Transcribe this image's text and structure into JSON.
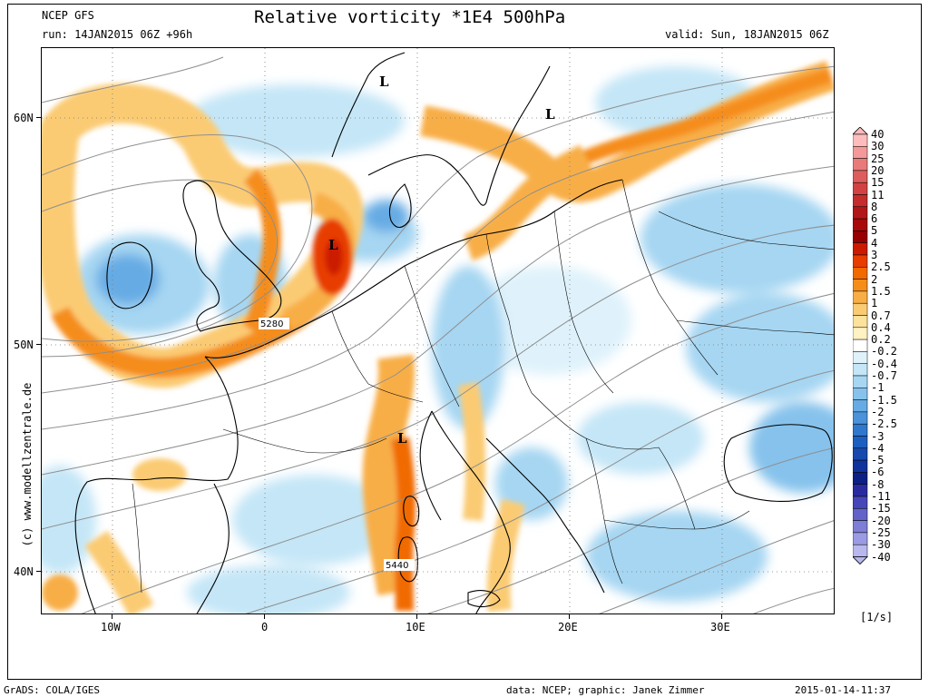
{
  "header": {
    "model": "NCEP GFS",
    "run": "run: 14JAN2015 06Z +96h",
    "title": "Relative vorticity *1E4 500hPa",
    "valid": "valid: Sun, 18JAN2015 06Z"
  },
  "map": {
    "lon_range": [
      -15,
      37
    ],
    "lat_range": [
      38,
      63
    ],
    "x_ticks": [
      "10W",
      "0",
      "10E",
      "20E",
      "30E"
    ],
    "y_ticks": [
      "60N",
      "50N",
      "40N"
    ],
    "contour_labels": [
      "5280",
      "5440"
    ],
    "pressure_marks": [
      "L",
      "L",
      "L",
      "L"
    ],
    "grid": true
  },
  "colorbar": {
    "unit": "[1/s]",
    "labels": [
      "40",
      "30",
      "25",
      "20",
      "15",
      "11",
      "8",
      "6",
      "5",
      "4",
      "3",
      "2.5",
      "2",
      "1.5",
      "1",
      "0.7",
      "0.4",
      "0.2",
      "-0.2",
      "-0.4",
      "-0.7",
      "-1",
      "-1.5",
      "-2",
      "-2.5",
      "-3",
      "-4",
      "-5",
      "-6",
      "-8",
      "-11",
      "-15",
      "-20",
      "-25",
      "-30",
      "-40"
    ],
    "colors": [
      "#ffbcbc",
      "#f39999",
      "#e97a7a",
      "#dd5d5d",
      "#d34242",
      "#c52c2c",
      "#b21717",
      "#a80a0a",
      "#960000",
      "#cc1a00",
      "#e83c00",
      "#f06a00",
      "#f58d1a",
      "#f8ae47",
      "#fbcb73",
      "#fde29c",
      "#fff2c3",
      "#ffffff",
      "#dff2fb",
      "#c4e6f7",
      "#a6d6f2",
      "#86c2ec",
      "#66abe4",
      "#4a93da",
      "#2f78cc",
      "#1d5fbf",
      "#1648ae",
      "#10329c",
      "#0c1f85",
      "#2a2aa0",
      "#4646b8",
      "#6262c9",
      "#7e7ed6",
      "#9b9be3",
      "#b8b8ee"
    ]
  },
  "footer": {
    "left": "GrADS: COLA/IGES",
    "credit": "data: NCEP; graphic: Janek Zimmer",
    "timestamp": "2015-01-14-11:37",
    "watermark": "(c) www.modellzentrale.de"
  }
}
